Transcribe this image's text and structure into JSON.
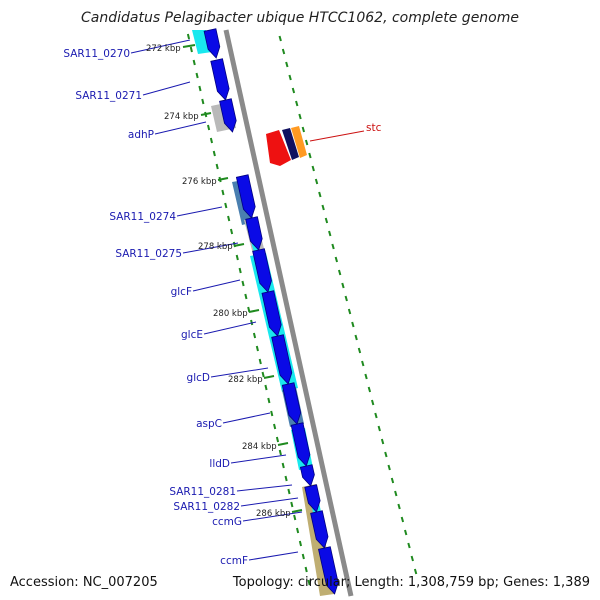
{
  "header": {
    "title": "Candidatus Pelagibacter ubique HTCC1062, complete genome"
  },
  "footer": {
    "accession": "Accession: NC_007205",
    "summary": "Topology: circular; Length: 1,308,759 bp; Genes: 1,389"
  },
  "map": {
    "colors": {
      "backbone": "#8a8a8a",
      "cds_forward": "#0a0ae6",
      "cds_outline": "#000080",
      "feature_cyan": "#19e8ee",
      "feature_steel": "#4a7fb0",
      "feature_grey": "#b9b9b9",
      "feature_khaki": "#bfae72",
      "feature_red": "#ee1111",
      "feature_orange": "#ff9a22",
      "feature_navy": "#101060",
      "tick": "#1f8a1f",
      "label_blue": "#1a1ab0",
      "label_red": "#cc1111"
    },
    "kbp_markers": [
      "272 kbp",
      "274 kbp",
      "276 kbp",
      "278 kbp",
      "280 kbp",
      "282 kbp",
      "284 kbp",
      "286 kbp"
    ],
    "gene_labels": [
      {
        "name": "SAR11_0270",
        "color": "blue"
      },
      {
        "name": "SAR11_0271",
        "color": "blue"
      },
      {
        "name": "adhP",
        "color": "blue"
      },
      {
        "name": "SAR11_0274",
        "color": "blue"
      },
      {
        "name": "SAR11_0275",
        "color": "blue"
      },
      {
        "name": "glcF",
        "color": "blue"
      },
      {
        "name": "glcE",
        "color": "blue"
      },
      {
        "name": "glcD",
        "color": "blue"
      },
      {
        "name": "aspC",
        "color": "blue"
      },
      {
        "name": "lldD",
        "color": "blue"
      },
      {
        "name": "SAR11_0281",
        "color": "blue"
      },
      {
        "name": "SAR11_0282",
        "color": "blue"
      },
      {
        "name": "ccmG",
        "color": "blue"
      },
      {
        "name": "ccmF",
        "color": "blue"
      },
      {
        "name": "stc",
        "color": "red"
      }
    ]
  }
}
